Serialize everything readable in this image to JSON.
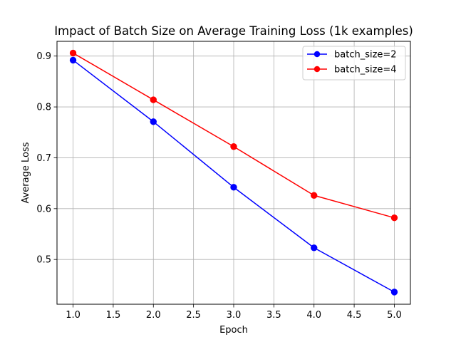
{
  "chart_data": {
    "type": "line",
    "title": "Impact of Batch Size on Average Training Loss (1k examples)",
    "xlabel": "Epoch",
    "ylabel": "Average Loss",
    "x": [
      1.0,
      2.0,
      3.0,
      4.0,
      5.0
    ],
    "xlim": [
      0.8,
      5.2
    ],
    "ylim": [
      0.412,
      0.929
    ],
    "xticks": [
      1.0,
      1.5,
      2.0,
      2.5,
      3.0,
      3.5,
      4.0,
      4.5,
      5.0
    ],
    "xtick_labels": [
      "1.0",
      "1.5",
      "2.0",
      "2.5",
      "3.0",
      "3.5",
      "4.0",
      "4.5",
      "5.0"
    ],
    "yticks": [
      0.5,
      0.6,
      0.7,
      0.8,
      0.9
    ],
    "ytick_labels": [
      "0.5",
      "0.6",
      "0.7",
      "0.8",
      "0.9"
    ],
    "grid": true,
    "legend_position": "top-right",
    "series": [
      {
        "name": "batch_size=2",
        "color": "#0000ff",
        "marker": "circle",
        "values": [
          0.892,
          0.771,
          0.642,
          0.523,
          0.436
        ]
      },
      {
        "name": "batch_size=4",
        "color": "#ff0000",
        "marker": "circle",
        "values": [
          0.906,
          0.814,
          0.722,
          0.626,
          0.582
        ]
      }
    ]
  }
}
